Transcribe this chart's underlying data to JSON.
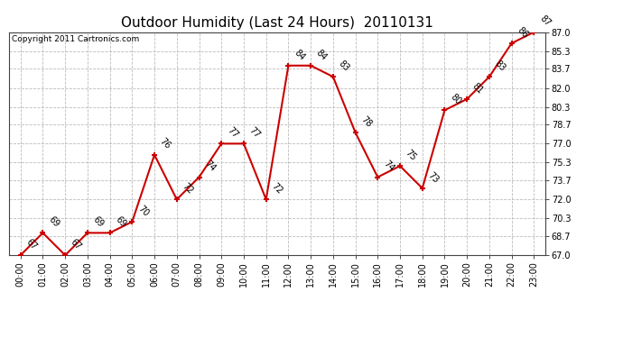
{
  "title": "Outdoor Humidity (Last 24 Hours)  20110131",
  "copyright": "Copyright 2011 Cartronics.com",
  "x_labels": [
    "00:00",
    "01:00",
    "02:00",
    "03:00",
    "04:00",
    "05:00",
    "06:00",
    "07:00",
    "08:00",
    "09:00",
    "10:00",
    "11:00",
    "12:00",
    "13:00",
    "14:00",
    "15:00",
    "16:00",
    "17:00",
    "18:00",
    "19:00",
    "20:00",
    "21:00",
    "22:00",
    "23:00"
  ],
  "y_values": [
    67,
    69,
    67,
    69,
    69,
    70,
    76,
    72,
    74,
    77,
    77,
    72,
    84,
    84,
    83,
    78,
    74,
    75,
    73,
    80,
    81,
    83,
    86,
    87
  ],
  "line_color": "#cc0000",
  "marker_color": "#cc0000",
  "bg_color": "#ffffff",
  "grid_color": "#bbbbbb",
  "ylim_min": 67.0,
  "ylim_max": 87.0,
  "ytick_values": [
    67.0,
    68.7,
    70.3,
    72.0,
    73.7,
    75.3,
    77.0,
    78.7,
    80.3,
    82.0,
    83.7,
    85.3,
    87.0
  ],
  "title_fontsize": 11,
  "label_fontsize": 7,
  "point_label_fontsize": 7,
  "copyright_fontsize": 6.5
}
